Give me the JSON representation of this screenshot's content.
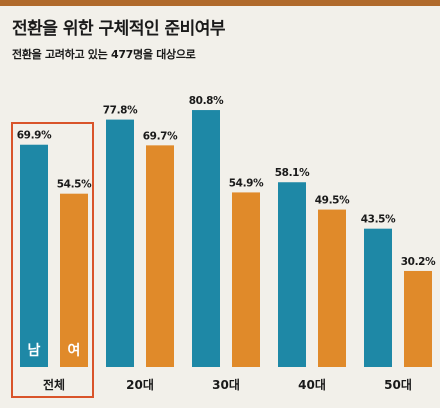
{
  "title": "전환을 위한 구체적인 준비여부",
  "subtitle": "전환을 고려하고 있는 477명을 대상으로",
  "colors": {
    "male": "#1e88a6",
    "female": "#e08a2a",
    "highlight": "#d9542a",
    "text": "#1a1a1a"
  },
  "chart_data": {
    "type": "bar",
    "categories": [
      "전체",
      "20대",
      "30대",
      "40대",
      "50대"
    ],
    "series": [
      {
        "name": "남",
        "values": [
          69.9,
          77.8,
          80.8,
          58.1,
          43.5
        ]
      },
      {
        "name": "여",
        "values": [
          54.5,
          69.7,
          54.9,
          49.5,
          30.2
        ]
      }
    ],
    "value_labels": [
      [
        "69.9%",
        "54.5%"
      ],
      [
        "77.8%",
        "69.7%"
      ],
      [
        "80.8%",
        "54.9%"
      ],
      [
        "58.1%",
        "49.5%"
      ],
      [
        "43.5%",
        "30.2%"
      ]
    ],
    "highlighted_category": "전체",
    "ylim": [
      0,
      100
    ],
    "grid": false,
    "legend": "in-bar labels"
  }
}
